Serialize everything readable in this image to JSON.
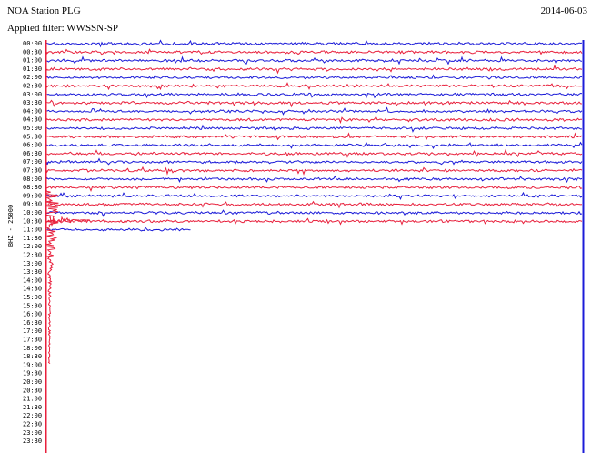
{
  "header": {
    "title": "NOA Station PLG",
    "filter": "Applied filter: WWSSN-SP",
    "date": "2014-06-03"
  },
  "axis_label": "BHZ - 25000",
  "rows": [
    "00:00",
    "00:30",
    "01:00",
    "01:30",
    "02:00",
    "02:30",
    "03:00",
    "03:30",
    "04:00",
    "04:30",
    "05:00",
    "05:30",
    "06:00",
    "06:30",
    "07:00",
    "07:30",
    "08:00",
    "08:30",
    "09:00",
    "09:30",
    "10:00",
    "10:30",
    "11:00",
    "11:30",
    "12:00",
    "12:30",
    "13:00",
    "13:30",
    "14:00",
    "14:30",
    "15:00",
    "15:30",
    "16:00",
    "16:30",
    "17:00",
    "17:30",
    "18:00",
    "18:30",
    "19:00",
    "19:30",
    "20:00",
    "20:30",
    "21:00",
    "21:30",
    "22:00",
    "22:30",
    "23:00",
    "23:30"
  ]
}
